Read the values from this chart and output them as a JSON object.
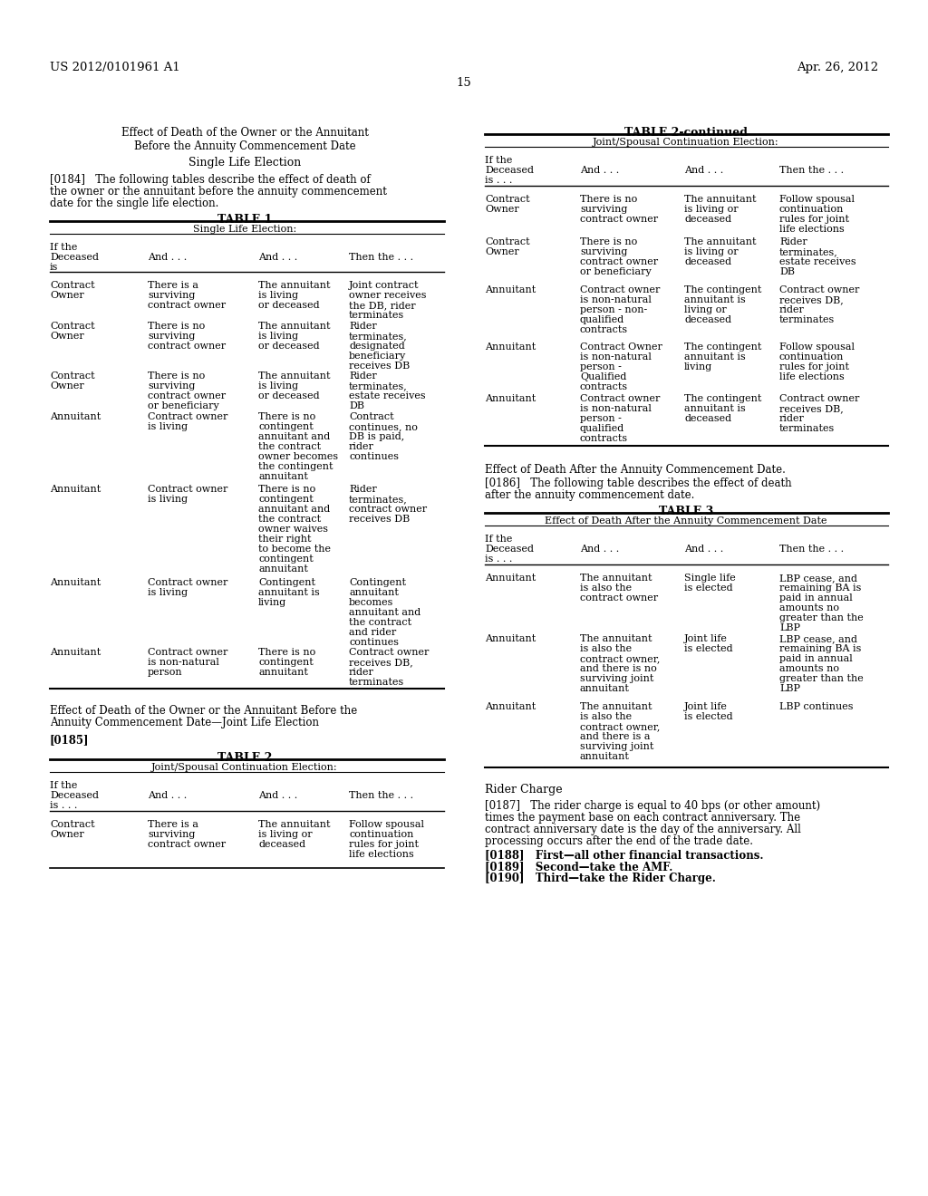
{
  "bg_color": "#ffffff",
  "header_left": "US 2012/0101961 A1",
  "header_right": "Apr. 26, 2012",
  "page_number": "15"
}
